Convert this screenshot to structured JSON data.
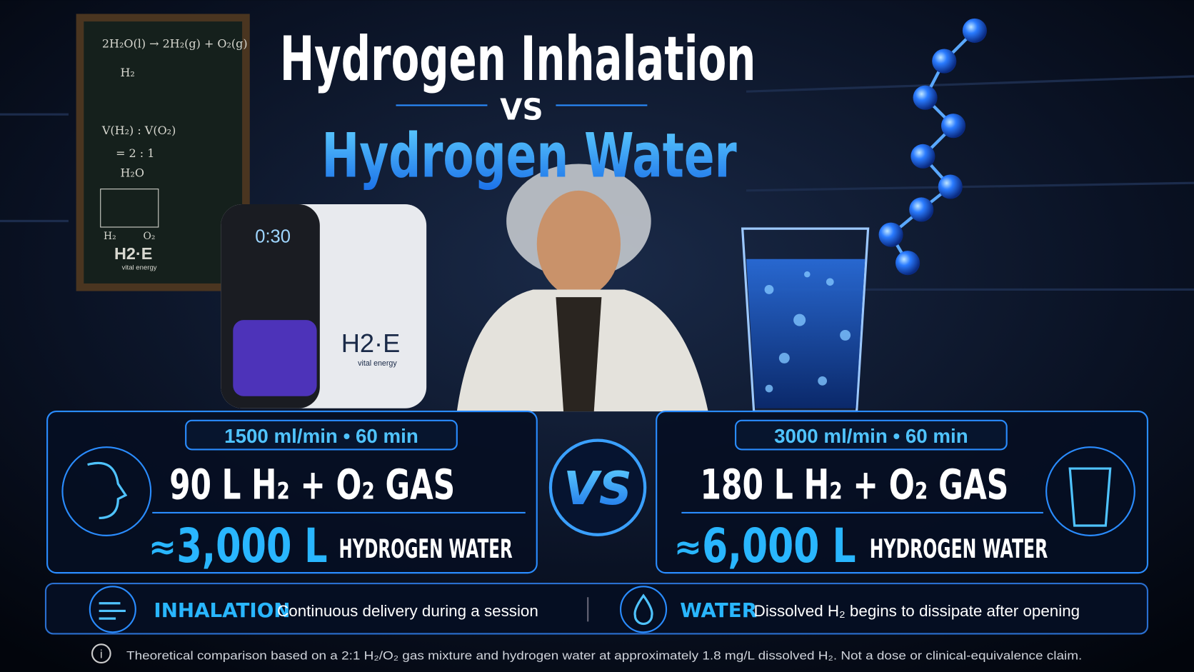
{
  "header": {
    "title_line1": "Hydrogen Inhalation",
    "versus": "VS",
    "title_line2": "Hydrogen Water"
  },
  "chalkboard": {
    "equation": "2H₂O(l) → 2H₂(g) + O₂(g)",
    "molecule": "H₂",
    "ratio_label": "V(H₂) : V(O₂)",
    "ratio_value": "= 2 : 1",
    "water": "H₂O",
    "electrode_left": "H₂",
    "electrode_right": "O₂",
    "brand": "H2·E",
    "brand_tagline": "vital energy"
  },
  "device": {
    "display": "0:30",
    "brand": "H2·E",
    "brand_tagline": "vital energy"
  },
  "left_panel": {
    "rate": "1500 ml/min • 60 min",
    "gas": "90 L H₂ + O₂ GAS",
    "approx": "≈",
    "amount": "3,000 L",
    "unit": "HYDROGEN WATER"
  },
  "center_badge": "VS",
  "right_panel": {
    "rate": "3000 ml/min • 60 min",
    "gas": "180 L H₂ + O₂ GAS",
    "approx": "≈",
    "amount": "6,000 L",
    "unit": "HYDROGEN WATER"
  },
  "notes": {
    "inhalation_label": "INHALATION",
    "inhalation_text": "Continuous delivery during a session",
    "water_label": "WATER",
    "water_text": "Dissolved H₂ begins to dissipate after opening"
  },
  "footer": "Theoretical comparison based on a 2:1 H₂/O₂ gas mixture and hydrogen water at approximately 1.8 mg/L dissolved H₂. Not a dose or clinical-equivalence claim."
}
